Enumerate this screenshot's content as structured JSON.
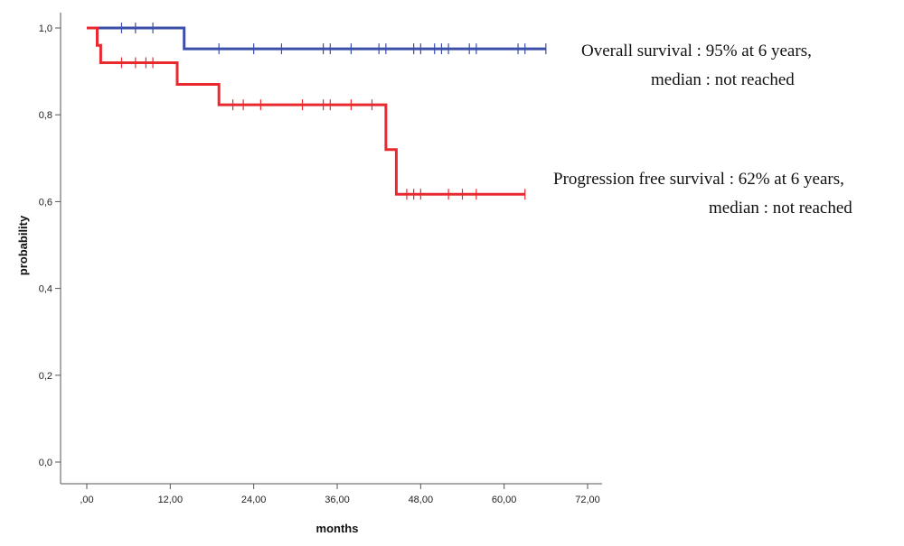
{
  "chart_data": {
    "type": "line",
    "title": "",
    "xlabel": "months",
    "ylabel": "probability",
    "xlim": [
      0,
      72
    ],
    "ylim": [
      0,
      1
    ],
    "x_ticks": [
      0,
      12,
      24,
      36,
      48,
      60,
      72
    ],
    "x_tick_labels": [
      ",00",
      "12,00",
      "24,00",
      "36,00",
      "48,00",
      "60,00",
      "72,00"
    ],
    "y_ticks": [
      0,
      0.2,
      0.4,
      0.6,
      0.8,
      1.0
    ],
    "y_tick_labels": [
      "0,0",
      "0,2",
      "0,4",
      "0,6",
      "0,8",
      "1,0"
    ],
    "grid": false,
    "legend": "none",
    "series": [
      {
        "color": "#3b4fa8",
        "steps": [
          [
            0,
            1.0
          ],
          [
            14,
            1.0
          ],
          [
            14,
            0.952
          ],
          [
            66,
            0.952
          ]
        ],
        "censored": [
          5,
          7,
          9.5,
          19,
          24,
          28,
          34,
          35,
          38,
          42,
          43,
          47,
          48,
          50,
          51,
          52,
          55,
          56,
          62,
          63,
          66
        ]
      },
      {
        "color": "#e8292f",
        "steps": [
          [
            0,
            1.0
          ],
          [
            1.5,
            1.0
          ],
          [
            1.5,
            0.96
          ],
          [
            2,
            0.96
          ],
          [
            2,
            0.92
          ],
          [
            13,
            0.92
          ],
          [
            13,
            0.87
          ],
          [
            19,
            0.87
          ],
          [
            19,
            0.823
          ],
          [
            43,
            0.823
          ],
          [
            43,
            0.72
          ],
          [
            44.5,
            0.72
          ],
          [
            44.5,
            0.617
          ],
          [
            63,
            0.617
          ]
        ],
        "censored": [
          5,
          7,
          8.5,
          9.5,
          21,
          22.5,
          25,
          31,
          34,
          35,
          38,
          41,
          46,
          47,
          48,
          52,
          54,
          56,
          63
        ]
      }
    ],
    "annotations": [
      {
        "lines": [
          "Overall survival : 95% at 6 years,",
          "median : not reached"
        ]
      },
      {
        "lines": [
          "Progression free survival : 62% at 6 years,",
          "median : not reached"
        ]
      }
    ]
  }
}
